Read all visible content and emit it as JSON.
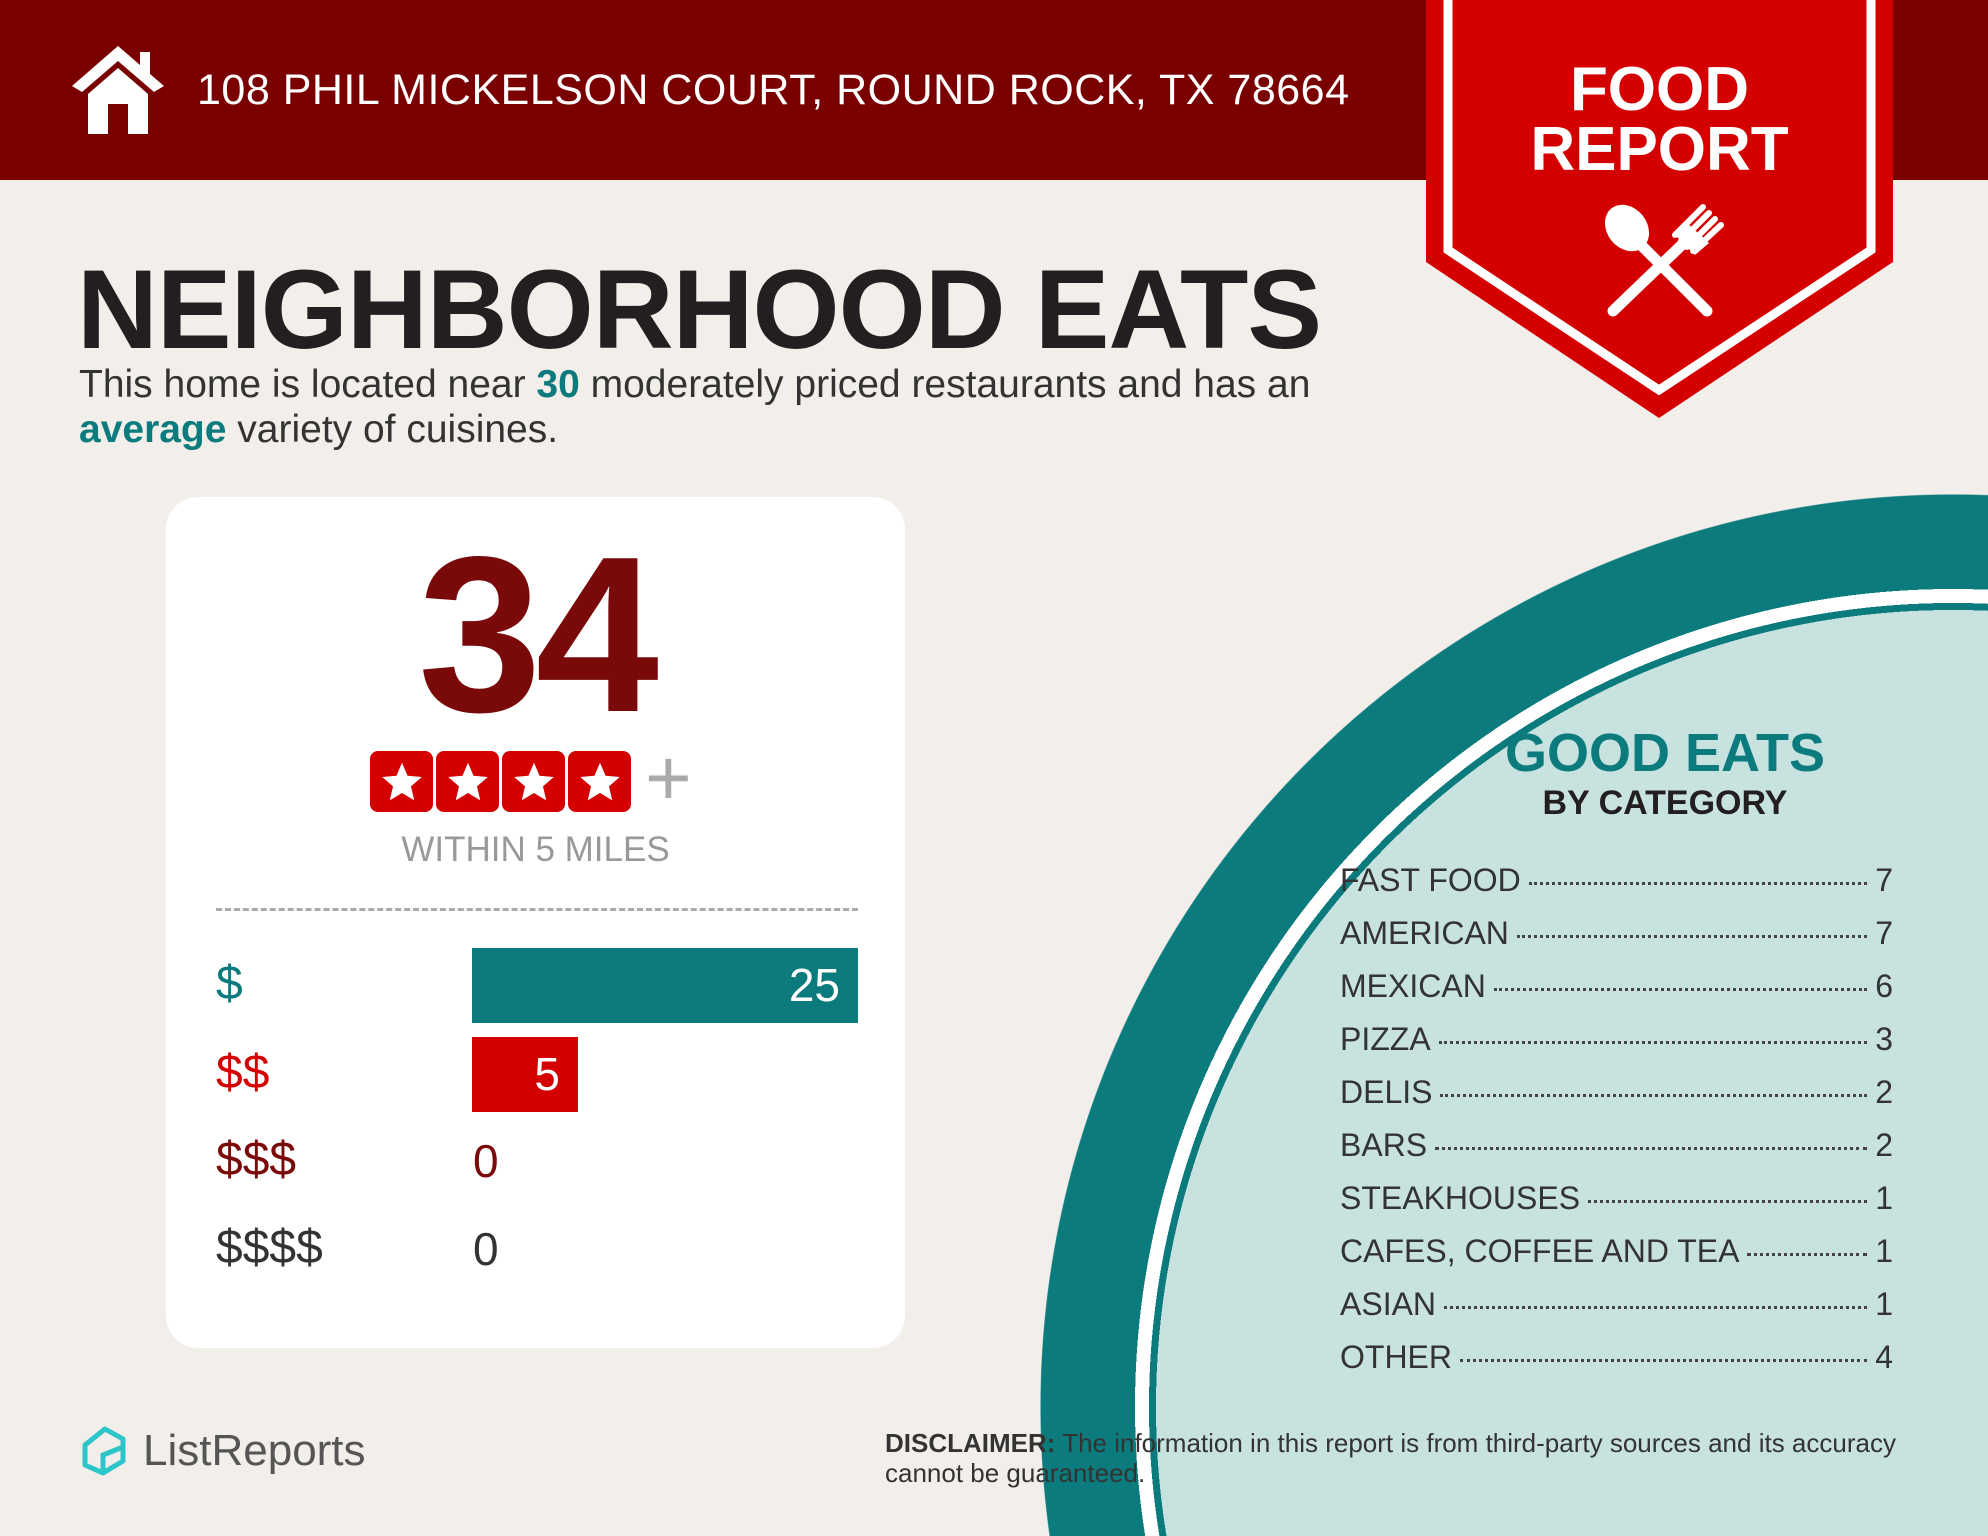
{
  "header": {
    "address": "108 PHIL MICKELSON COURT, ROUND ROCK, TX 78664",
    "icon": "house-icon"
  },
  "ribbon": {
    "line1": "FOOD",
    "line2": "REPORT",
    "icon": "spoon-fork-icon"
  },
  "title": "NEIGHBORHOOD EATS",
  "description": {
    "part1": "This home is located near ",
    "count": "30",
    "part2": " moderately priced restaurants and has an ",
    "variety": "average",
    "part3": " variety of cuisines."
  },
  "summary": {
    "count": "34",
    "rating_stars": 4,
    "rating_suffix": "+",
    "radius_label": "WITHIN 5 MILES",
    "price_levels": [
      {
        "label": "$",
        "value": 25,
        "color": "#0b7b7d"
      },
      {
        "label": "$$",
        "value": 5,
        "color": "#d40000"
      },
      {
        "label": "$$$",
        "value": 0,
        "color": "#7a0a0a"
      },
      {
        "label": "$$$$",
        "value": 0,
        "color": "#333333"
      }
    ]
  },
  "categories": {
    "title": "GOOD EATS",
    "subtitle": "BY CATEGORY",
    "items": [
      {
        "name": "FAST FOOD",
        "count": "7"
      },
      {
        "name": "AMERICAN",
        "count": "7"
      },
      {
        "name": "MEXICAN",
        "count": "6"
      },
      {
        "name": "PIZZA",
        "count": "3"
      },
      {
        "name": "DELIS",
        "count": "2"
      },
      {
        "name": "BARS",
        "count": "2"
      },
      {
        "name": "STEAKHOUSES",
        "count": "1"
      },
      {
        "name": "CAFES, COFFEE AND TEA",
        "count": "1"
      },
      {
        "name": "ASIAN",
        "count": "1"
      },
      {
        "name": "OTHER",
        "count": "4"
      }
    ]
  },
  "footer": {
    "logo": "ListReports",
    "disclaimer_label": "DISCLAIMER:",
    "disclaimer_text": " The information in this report is from third-party sources and its accuracy cannot be guaranteed."
  },
  "colors": {
    "header": "#7a0000",
    "ribbon": "#d40000",
    "teal": "#0b7b7d",
    "circle_fill": "#c7e2df",
    "background": "#f2eeea"
  }
}
